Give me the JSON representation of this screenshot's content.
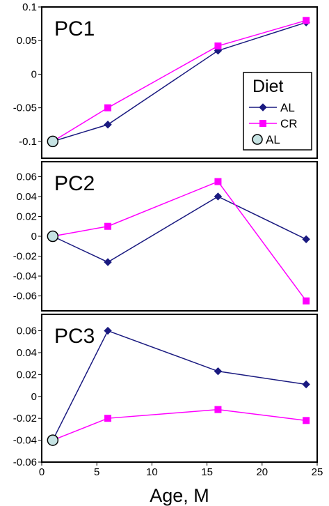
{
  "colors": {
    "AL_line": "#1a1a80",
    "CR_line": "#ff00ff",
    "start_marker_fill": "#c6e3e3",
    "frame": "#000000"
  },
  "legend": {
    "title": "Diet",
    "entries": [
      {
        "label": "AL",
        "marker": "diamond",
        "color": "#1a1a80"
      },
      {
        "label": "CR",
        "marker": "square",
        "color": "#ff00ff"
      },
      {
        "label": "AL",
        "marker": "circle",
        "color": "#c6e3e3"
      }
    ],
    "placement": "inside-right of top panel"
  },
  "chart_data": [
    {
      "type": "line",
      "title": "PC1",
      "xlabel": "",
      "xlim": [
        0,
        25
      ],
      "ylim": [
        -0.125,
        0.1
      ],
      "yticks": [
        "0.1",
        "0.05",
        "0",
        "-0.05",
        "-0.1"
      ],
      "ytick_values": [
        0.1,
        0.05,
        0,
        -0.05,
        -0.1
      ],
      "series": [
        {
          "name": "AL",
          "marker": "diamond",
          "x": [
            1,
            6,
            16,
            24
          ],
          "y": [
            -0.1,
            -0.075,
            0.035,
            0.077
          ]
        },
        {
          "name": "CR",
          "marker": "square",
          "x": [
            1,
            6,
            16,
            24
          ],
          "y": [
            -0.1,
            -0.05,
            0.042,
            0.08
          ]
        }
      ],
      "start_point": {
        "x": 1,
        "y": -0.1
      }
    },
    {
      "type": "line",
      "title": "PC2",
      "xlabel": "",
      "xlim": [
        0,
        25
      ],
      "ylim": [
        -0.075,
        0.075
      ],
      "yticks": [
        "0.06",
        "0.04",
        "0.02",
        "0",
        "-0.02",
        "-0.04",
        "-0.06"
      ],
      "ytick_values": [
        0.06,
        0.04,
        0.02,
        0,
        -0.02,
        -0.04,
        -0.06
      ],
      "series": [
        {
          "name": "AL",
          "marker": "diamond",
          "x": [
            1,
            6,
            16,
            24
          ],
          "y": [
            0,
            -0.026,
            0.04,
            -0.003
          ]
        },
        {
          "name": "CR",
          "marker": "square",
          "x": [
            1,
            6,
            16,
            24
          ],
          "y": [
            0,
            0.01,
            0.055,
            -0.065
          ]
        }
      ],
      "start_point": {
        "x": 1,
        "y": 0
      }
    },
    {
      "type": "line",
      "title": "PC3",
      "xlabel": "Age, M",
      "xlim": [
        0,
        25
      ],
      "xticks": [
        "0",
        "5",
        "10",
        "15",
        "20",
        "25"
      ],
      "xtick_values": [
        0,
        5,
        10,
        15,
        20,
        25
      ],
      "ylim": [
        -0.06,
        0.075
      ],
      "yticks": [
        "0.06",
        "0.04",
        "0.02",
        "0",
        "-0.02",
        "-0.04",
        "-0.06"
      ],
      "ytick_values": [
        0.06,
        0.04,
        0.02,
        0,
        -0.02,
        -0.04,
        -0.06
      ],
      "series": [
        {
          "name": "AL",
          "marker": "diamond",
          "x": [
            1,
            6,
            16,
            24
          ],
          "y": [
            -0.04,
            0.06,
            0.023,
            0.011
          ]
        },
        {
          "name": "CR",
          "marker": "square",
          "x": [
            1,
            6,
            16,
            24
          ],
          "y": [
            -0.04,
            -0.02,
            -0.012,
            -0.022
          ]
        }
      ],
      "start_point": {
        "x": 1,
        "y": -0.04
      }
    }
  ]
}
